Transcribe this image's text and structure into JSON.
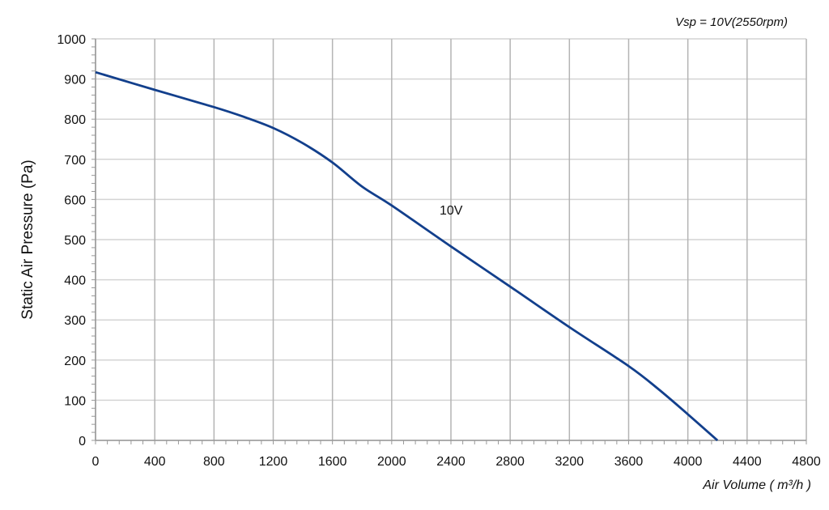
{
  "chart_data": {
    "type": "line",
    "title": "",
    "annotation_top_right": "Vsp = 10V(2550rpm)",
    "xlabel": "Air Volume ( m³/h )",
    "ylabel": "Static Air Pressure  (Pa)",
    "xlim": [
      0,
      4800
    ],
    "ylim": [
      0,
      1000
    ],
    "xticks": [
      0,
      400,
      800,
      1200,
      1600,
      2000,
      2400,
      2800,
      3200,
      3600,
      4000,
      4400,
      4800
    ],
    "yticks": [
      0,
      100,
      200,
      300,
      400,
      500,
      600,
      700,
      800,
      900,
      1000
    ],
    "grid": true,
    "series": [
      {
        "name": "10V",
        "color": "#123f8c",
        "x": [
          0,
          400,
          800,
          1000,
          1200,
          1400,
          1600,
          1800,
          2000,
          2400,
          2800,
          3200,
          3600,
          3800,
          4000,
          4200
        ],
        "y": [
          917,
          873,
          830,
          806,
          778,
          740,
          692,
          632,
          585,
          483,
          383,
          282,
          185,
          128,
          65,
          0
        ]
      }
    ]
  }
}
